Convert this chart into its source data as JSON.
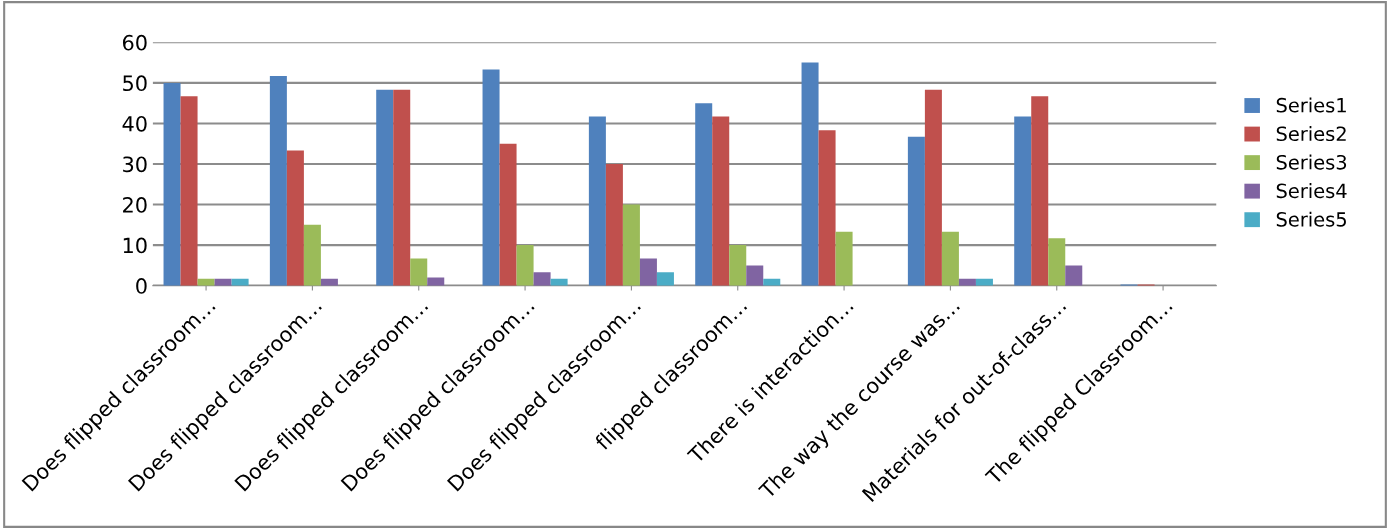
{
  "chart_data": {
    "type": "bar",
    "categories": [
      "Does flipped classroom…",
      "Does flipped classroom…",
      "Does flipped classroom…",
      "Does flipped classroom…",
      "Does flipped classroom…",
      "flipped classroom…",
      "There is interaction…",
      "The way the course was…",
      "Materials for out-of-class…",
      "The flipped Classroom…"
    ],
    "series": [
      {
        "name": "Series1",
        "color": "#4f81bd",
        "values": [
          50,
          51.7,
          48.3,
          53.3,
          41.7,
          45,
          55,
          36.7,
          41.7,
          0.3
        ]
      },
      {
        "name": "Series2",
        "color": "#c0504d",
        "values": [
          46.7,
          33.3,
          48.3,
          35,
          30,
          41.7,
          38.3,
          48.3,
          46.7,
          0.3
        ]
      },
      {
        "name": "Series3",
        "color": "#9bbb59",
        "values": [
          1.7,
          15,
          6.7,
          10,
          20,
          10,
          13.3,
          13.3,
          11.7,
          0
        ]
      },
      {
        "name": "Series4",
        "color": "#8064a2",
        "values": [
          1.7,
          1.7,
          2,
          3.3,
          6.7,
          5,
          0,
          1.7,
          5,
          0
        ]
      },
      {
        "name": "Series5",
        "color": "#4bacc6",
        "values": [
          1.7,
          0,
          0,
          1.7,
          3.3,
          1.7,
          0,
          1.7,
          0,
          0
        ]
      }
    ],
    "ylim": [
      0,
      60
    ],
    "yticks": [
      0,
      10,
      20,
      30,
      40,
      50,
      60
    ],
    "grid": "y",
    "legend": "right"
  }
}
